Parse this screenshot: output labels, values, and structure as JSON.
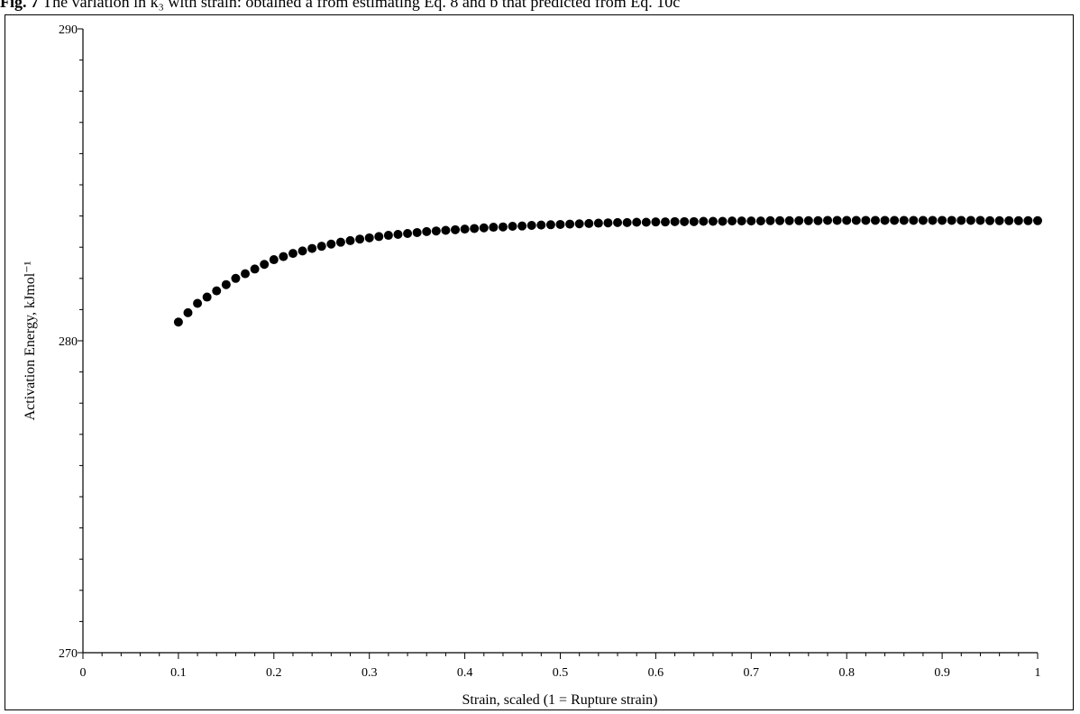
{
  "caption": {
    "prefix": "Fig. 7",
    "text": " The variation in k₃ with strain: obtained a from estimating Eq. 8 and b that predicted from Eq. 10c"
  },
  "chart_data": {
    "type": "scatter",
    "title": "",
    "xlabel": "Strain, scaled (1 = Rupture strain)",
    "ylabel": "Activation Energy, kJmol⁻¹",
    "xlim": [
      0,
      1
    ],
    "ylim": [
      270,
      290
    ],
    "x_ticks": [
      0,
      0.1,
      0.2,
      0.3,
      0.4,
      0.5,
      0.6,
      0.7,
      0.8,
      0.9,
      1
    ],
    "x_tick_labels": [
      "0",
      "0.1",
      "0.2",
      "0.3",
      "0.4",
      "0.5",
      "0.6",
      "0.7",
      "0.8",
      "0.9",
      "1"
    ],
    "y_ticks": [
      270,
      280,
      290
    ],
    "y_tick_labels": [
      "270",
      "280",
      "290"
    ],
    "grid": false,
    "marker_color": "#000000",
    "series": [
      {
        "x": [
          0.1,
          0.11,
          0.12,
          0.13,
          0.14,
          0.15,
          0.16,
          0.17,
          0.18,
          0.19,
          0.2,
          0.21,
          0.22,
          0.23,
          0.24,
          0.25,
          0.26,
          0.27,
          0.28,
          0.29,
          0.3,
          0.31,
          0.32,
          0.33,
          0.34,
          0.35,
          0.36,
          0.37,
          0.38,
          0.39,
          0.4,
          0.41,
          0.42,
          0.43,
          0.44,
          0.45,
          0.46,
          0.47,
          0.48,
          0.49,
          0.5,
          0.51,
          0.52,
          0.53,
          0.54,
          0.55,
          0.56,
          0.57,
          0.58,
          0.59,
          0.6,
          0.61,
          0.62,
          0.63,
          0.64,
          0.65,
          0.66,
          0.67,
          0.68,
          0.69,
          0.7,
          0.71,
          0.72,
          0.73,
          0.74,
          0.75,
          0.76,
          0.77,
          0.78,
          0.79,
          0.8,
          0.81,
          0.82,
          0.83,
          0.84,
          0.85,
          0.86,
          0.87,
          0.88,
          0.89,
          0.9,
          0.91,
          0.92,
          0.93,
          0.94,
          0.95,
          0.96,
          0.97,
          0.98,
          0.99,
          1.0
        ],
        "y": [
          280.6,
          280.9,
          281.2,
          281.4,
          281.6,
          281.8,
          282.0,
          282.15,
          282.3,
          282.45,
          282.6,
          282.7,
          282.8,
          282.88,
          282.96,
          283.03,
          283.1,
          283.16,
          283.21,
          283.26,
          283.3,
          283.34,
          283.38,
          283.41,
          283.44,
          283.47,
          283.5,
          283.52,
          283.54,
          283.56,
          283.58,
          283.6,
          283.62,
          283.64,
          283.65,
          283.67,
          283.68,
          283.7,
          283.71,
          283.72,
          283.73,
          283.74,
          283.75,
          283.76,
          283.77,
          283.78,
          283.79,
          283.79,
          283.8,
          283.8,
          283.81,
          283.81,
          283.82,
          283.82,
          283.82,
          283.83,
          283.83,
          283.83,
          283.84,
          283.84,
          283.84,
          283.84,
          283.85,
          283.85,
          283.85,
          283.85,
          283.85,
          283.85,
          283.86,
          283.86,
          283.86,
          283.86,
          283.86,
          283.86,
          283.86,
          283.86,
          283.86,
          283.86,
          283.86,
          283.86,
          283.86,
          283.86,
          283.86,
          283.86,
          283.86,
          283.85,
          283.85,
          283.85,
          283.85,
          283.85,
          283.85
        ]
      }
    ]
  }
}
